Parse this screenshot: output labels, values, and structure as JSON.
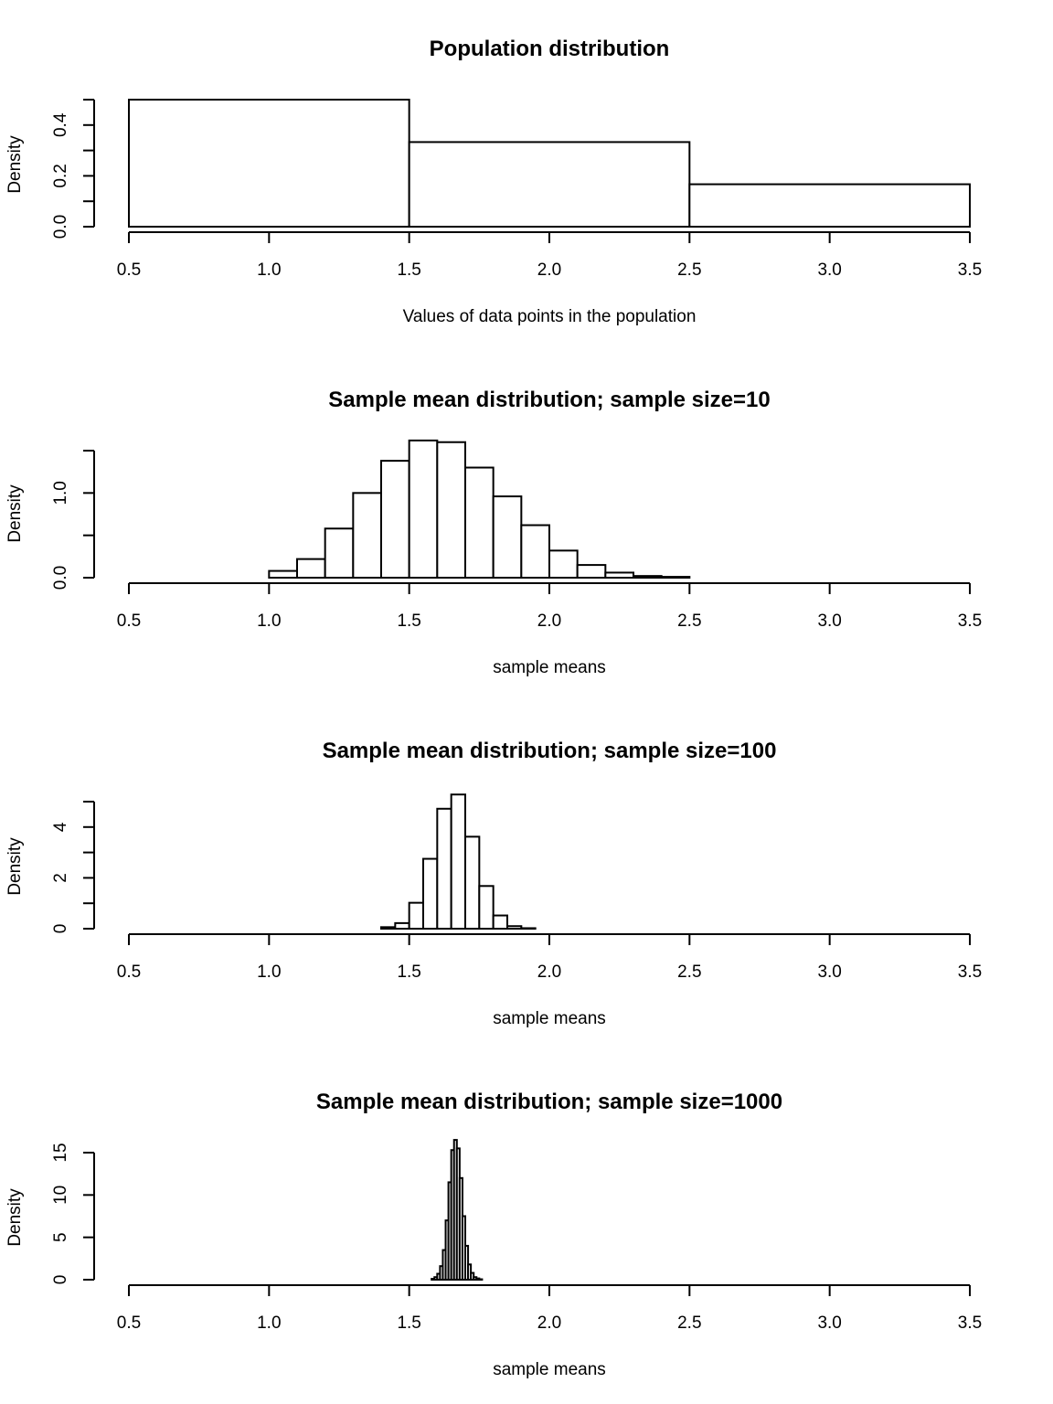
{
  "chart_data": [
    {
      "type": "bar",
      "title": "Population distribution",
      "xlabel": "Values of data points in the population",
      "ylabel": "Density",
      "xlim": [
        0.5,
        3.5
      ],
      "ylim": [
        0,
        0.5
      ],
      "xticks": [
        "0.5",
        "1.0",
        "1.5",
        "2.0",
        "2.5",
        "3.0",
        "3.5"
      ],
      "yticks": [
        0,
        0.1,
        0.2,
        0.3,
        0.4,
        0.5
      ],
      "ytick_labels": [
        "0.0",
        "",
        "0.2",
        "",
        "0.4",
        ""
      ],
      "bin_edges": [
        0.5,
        1.5,
        2.5,
        3.5
      ],
      "values": [
        0.5,
        0.333,
        0.167
      ]
    },
    {
      "type": "bar",
      "title": "Sample mean distribution; sample size=10",
      "xlabel": "sample means",
      "ylabel": "Density",
      "xlim": [
        0.5,
        3.5
      ],
      "ylim": [
        0,
        1.5
      ],
      "xticks": [
        "0.5",
        "1.0",
        "1.5",
        "2.0",
        "2.5",
        "3.0",
        "3.5"
      ],
      "yticks": [
        0,
        0.5,
        1.0,
        1.5
      ],
      "ytick_labels": [
        "0.0",
        "",
        "1.0",
        ""
      ],
      "bin_edges": [
        1.0,
        1.1,
        1.2,
        1.3,
        1.4,
        1.5,
        1.6,
        1.7,
        1.8,
        1.9,
        2.0,
        2.1,
        2.2,
        2.3,
        2.4,
        2.5
      ],
      "values": [
        0.08,
        0.22,
        0.58,
        1.0,
        1.38,
        1.62,
        1.6,
        1.3,
        0.96,
        0.62,
        0.32,
        0.15,
        0.06,
        0.02,
        0.01
      ]
    },
    {
      "type": "bar",
      "title": "Sample mean distribution; sample size=100",
      "xlabel": "sample means",
      "ylabel": "Density",
      "xlim": [
        0.5,
        3.5
      ],
      "ylim": [
        0,
        5
      ],
      "xticks": [
        "0.5",
        "1.0",
        "1.5",
        "2.0",
        "2.5",
        "3.0",
        "3.5"
      ],
      "yticks": [
        0,
        1,
        2,
        3,
        4,
        5
      ],
      "ytick_labels": [
        "0",
        "",
        "2",
        "",
        "4",
        ""
      ],
      "bin_edges": [
        1.4,
        1.45,
        1.5,
        1.55,
        1.6,
        1.65,
        1.7,
        1.75,
        1.8,
        1.85,
        1.9,
        1.95
      ],
      "values": [
        0.06,
        0.22,
        1.02,
        2.75,
        4.72,
        5.28,
        3.62,
        1.68,
        0.52,
        0.1,
        0.02
      ]
    },
    {
      "type": "bar",
      "title": "Sample mean distribution; sample size=1000",
      "xlabel": "sample means",
      "ylabel": "Density",
      "xlim": [
        0.5,
        3.5
      ],
      "ylim": [
        0,
        15
      ],
      "xticks": [
        "0.5",
        "1.0",
        "1.5",
        "2.0",
        "2.5",
        "3.0",
        "3.5"
      ],
      "yticks": [
        0,
        5,
        10,
        15
      ],
      "ytick_labels": [
        "0",
        "5",
        "10",
        "15"
      ],
      "bin_edges": [
        1.58,
        1.59,
        1.6,
        1.61,
        1.62,
        1.63,
        1.64,
        1.65,
        1.66,
        1.67,
        1.68,
        1.69,
        1.7,
        1.71,
        1.72,
        1.73,
        1.74,
        1.75,
        1.76
      ],
      "values": [
        0.1,
        0.3,
        0.7,
        1.6,
        3.5,
        7.0,
        11.5,
        15.3,
        16.5,
        15.5,
        12.0,
        7.5,
        4.0,
        1.8,
        0.8,
        0.3,
        0.15,
        0.05
      ]
    }
  ]
}
